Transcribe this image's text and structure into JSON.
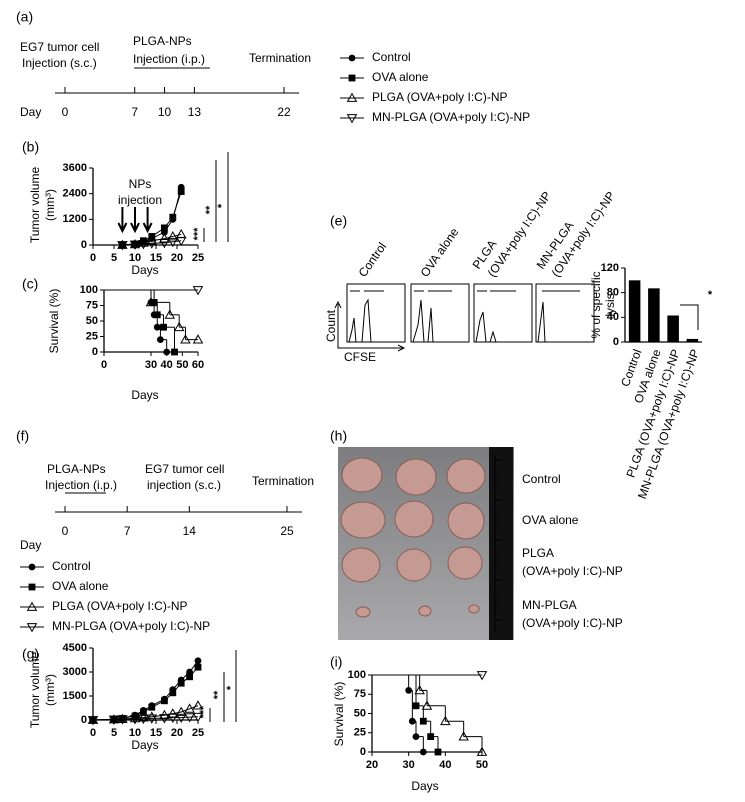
{
  "timeline_a": {
    "label": "(a)",
    "annotations": [
      "EG7 tumor cell",
      "Injection (s.c.)",
      "PLGA-NPs",
      "Injection (i.p.)",
      "Termination"
    ],
    "axis_label": "Day",
    "xlim": [
      0,
      22
    ],
    "ticks": [
      0,
      7,
      10,
      13,
      22
    ]
  },
  "legend_a": [
    {
      "name": "Control",
      "marker": "circle"
    },
    {
      "name": "OVA alone",
      "marker": "square"
    },
    {
      "name": "PLGA (OVA+poly I:C)-NP",
      "marker": "triangle-up"
    },
    {
      "name": "MN-PLGA (OVA+poly I:C)-NP",
      "marker": "triangle-down"
    }
  ],
  "chart_data": [
    {
      "type": "line",
      "panel": "(b)",
      "ylabel": [
        "Tumor volume",
        "(mm³)"
      ],
      "xlabel": "Days",
      "xlim": [
        0,
        25
      ],
      "xticks": [
        0,
        5,
        10,
        15,
        20,
        25
      ],
      "ylim": [
        0,
        3600
      ],
      "yticks": [
        0,
        1200,
        2400,
        3600
      ],
      "notes": [
        "NPs",
        "injection"
      ],
      "arrows": [
        7,
        10,
        13
      ],
      "annotations": [
        "***",
        "**",
        "*"
      ],
      "x": [
        7,
        10,
        12,
        14,
        17,
        19,
        21
      ],
      "series": [
        {
          "marker": "circle",
          "color": "#000000",
          "values": [
            0,
            50,
            150,
            300,
            600,
            1200,
            2700
          ]
        },
        {
          "marker": "square",
          "color": "#000000",
          "values": [
            0,
            50,
            200,
            400,
            800,
            1300,
            2500
          ]
        },
        {
          "marker": "triangle-up",
          "color": "#000000",
          "values": [
            0,
            30,
            100,
            200,
            300,
            400,
            500
          ]
        },
        {
          "marker": "triangle-down",
          "color": "#000000",
          "values": [
            0,
            20,
            50,
            80,
            100,
            150,
            200
          ]
        }
      ]
    },
    {
      "type": "survival",
      "panel": "(c)",
      "ylabel": "Survival  (%)",
      "xlabel": "Days",
      "xlim": [
        0,
        60
      ],
      "xticks": [
        0,
        30,
        40,
        50,
        60
      ],
      "ylim": [
        0,
        100
      ],
      "yticks": [
        0,
        25,
        50,
        75,
        100
      ],
      "series": [
        {
          "marker": "circle",
          "color": "#000000",
          "x": [
            0,
            30,
            32,
            34,
            36,
            40
          ],
          "values": [
            100,
            80,
            60,
            40,
            20,
            0
          ]
        },
        {
          "marker": "square",
          "color": "#000000",
          "x": [
            0,
            32,
            34,
            38,
            45
          ],
          "values": [
            100,
            80,
            60,
            40,
            0
          ]
        },
        {
          "marker": "triangle-up",
          "color": "#000000",
          "x": [
            0,
            30,
            42,
            48,
            52,
            60
          ],
          "values": [
            100,
            80,
            60,
            40,
            20,
            20
          ]
        },
        {
          "marker": "triangle-down",
          "color": "#000000",
          "x": [
            0,
            60
          ],
          "values": [
            100,
            100
          ]
        }
      ]
    },
    {
      "type": "bar",
      "panel": "(e)",
      "ylabel": [
        "% of specific",
        "lysis"
      ],
      "annotation": "*",
      "color": "#000000",
      "ylim": [
        0,
        120
      ],
      "yticks": [
        0,
        40,
        80,
        120
      ],
      "categories": [
        "Control",
        "OVA alone",
        "PLGA (OVA+poly I:C)-NP",
        "MN-PLGA (OVA+poly I:C)-NP"
      ],
      "values": [
        100,
        87,
        43,
        5
      ]
    },
    {
      "type": "line",
      "panel": "(g)",
      "ylabel": [
        "Tumor volume",
        "(mm³)"
      ],
      "xlabel": "Days",
      "xlim": [
        0,
        25
      ],
      "xticks": [
        0,
        5,
        10,
        15,
        20,
        25
      ],
      "ylim": [
        0,
        4500
      ],
      "yticks": [
        0,
        1500,
        3000,
        4500
      ],
      "annotations": [
        "***",
        "**",
        "*"
      ],
      "x": [
        0,
        5,
        7,
        10,
        12,
        14,
        17,
        19,
        21,
        23,
        25
      ],
      "series": [
        {
          "marker": "circle",
          "color": "#000000",
          "values": [
            0,
            50,
            100,
            300,
            600,
            900,
            1300,
            1900,
            2500,
            3000,
            3700
          ]
        },
        {
          "marker": "square",
          "color": "#000000",
          "values": [
            0,
            50,
            100,
            250,
            500,
            800,
            1200,
            1700,
            2300,
            2700,
            3300
          ]
        },
        {
          "marker": "triangle-up",
          "color": "#000000",
          "values": [
            0,
            30,
            60,
            100,
            150,
            200,
            300,
            400,
            500,
            700,
            900
          ]
        },
        {
          "marker": "triangle-down",
          "color": "#000000",
          "values": [
            0,
            30,
            50,
            60,
            80,
            100,
            120,
            150,
            150,
            180,
            200
          ]
        }
      ]
    },
    {
      "type": "survival",
      "panel": "(i)",
      "ylabel": "Survival  (%)",
      "xlabel": "Days",
      "xlim": [
        20,
        50
      ],
      "xticks": [
        20,
        30,
        40,
        50
      ],
      "ylim": [
        0,
        100
      ],
      "yticks": [
        0,
        25,
        50,
        75,
        100
      ],
      "series": [
        {
          "marker": "circle",
          "color": "#000000",
          "x": [
            20,
            30,
            31,
            32,
            34
          ],
          "values": [
            100,
            80,
            40,
            20,
            0
          ]
        },
        {
          "marker": "square",
          "color": "#000000",
          "x": [
            20,
            32,
            34,
            36,
            38
          ],
          "values": [
            100,
            60,
            40,
            20,
            0
          ]
        },
        {
          "marker": "triangle-up",
          "color": "#000000",
          "x": [
            20,
            33,
            35,
            40,
            45,
            50
          ],
          "values": [
            100,
            80,
            60,
            40,
            20,
            0
          ]
        },
        {
          "marker": "triangle-down",
          "color": "#000000",
          "x": [
            20,
            50
          ],
          "values": [
            100,
            100
          ]
        }
      ]
    }
  ],
  "flow_e": {
    "headers": [
      [
        "Control"
      ],
      [
        "OVA alone"
      ],
      [
        "PLGA",
        "(OVA+poly I:C)-NP"
      ],
      [
        "MN-PLGA",
        "(OVA+poly I:C)-NP"
      ]
    ],
    "ylabel": "Count",
    "xlabel": "CFSE"
  },
  "timeline_f": {
    "label": "(f)",
    "annotations": [
      "PLGA-NPs",
      "Injection (i.p.)",
      "EG7 tumor cell",
      "injection (s.c.)",
      "Termination"
    ],
    "axis_label": "Day",
    "xlim": [
      0,
      25
    ],
    "ticks": [
      0,
      7,
      14,
      25
    ]
  },
  "legend_f": [
    {
      "name": "Control",
      "marker": "circle"
    },
    {
      "name": "OVA alone",
      "marker": "square"
    },
    {
      "name": "PLGA (OVA+poly I:C)-NP",
      "marker": "triangle-up"
    },
    {
      "name": "MN-PLGA (OVA+poly I:C)-NP",
      "marker": "triangle-down"
    }
  ],
  "panel_h": {
    "label": "(h)",
    "rows": [
      [
        "Control"
      ],
      [
        "OVA alone"
      ],
      [
        "PLGA",
        "(OVA+poly I:C)-NP"
      ],
      [
        "MN-PLGA",
        "(OVA+poly I:C)-NP"
      ]
    ]
  }
}
